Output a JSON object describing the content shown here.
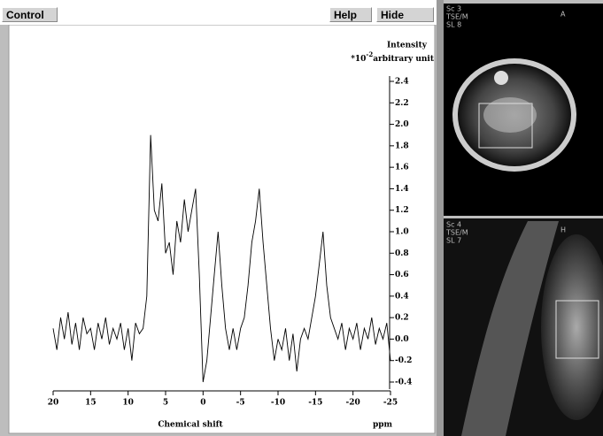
{
  "toolbar": {
    "buttons": [
      "Control",
      "Help",
      "Hide"
    ]
  },
  "chart_data": {
    "type": "line",
    "y_label": "Intensity",
    "y_unit_prefix": "*10",
    "y_unit_exponent": "-2",
    "y_unit": "arbitrary unit",
    "x_label": "Chemical shift",
    "x_unit": "ppm",
    "color": "#000000",
    "xlim": [
      20,
      -25
    ],
    "xticks": [
      20,
      15,
      10,
      5,
      0,
      -5,
      -10,
      -15,
      -20,
      -25
    ],
    "ylim": [
      -0.4,
      2.4
    ],
    "yticks": [
      2.4,
      2.2,
      {
        "value": 2,
        "label": "2.0"
      },
      1.8,
      1.6,
      1.4,
      1.2,
      {
        "value": 1,
        "label": "1.0"
      },
      0.8,
      0.6,
      0.4,
      0.2,
      {
        "value": 0,
        "label": "0.0"
      },
      -0.2,
      -0.4
    ],
    "x": [
      20,
      19.5,
      19,
      18.5,
      18,
      17.5,
      17,
      16.5,
      16,
      15.5,
      15,
      14.5,
      14,
      13.5,
      13,
      12.5,
      12,
      11.5,
      11,
      10.5,
      10,
      9.5,
      9,
      8.5,
      8,
      7.5,
      7,
      6.5,
      6,
      5.5,
      5,
      4.5,
      4,
      3.5,
      3,
      2.5,
      2,
      1.5,
      1,
      0.5,
      0,
      -0.5,
      -1,
      -1.5,
      -2,
      -2.5,
      -3,
      -3.5,
      -4,
      -4.5,
      -5,
      -5.5,
      -6,
      -6.5,
      -7,
      -7.5,
      -8,
      -8.5,
      -9,
      -9.5,
      -10,
      -10.5,
      -11,
      -11.5,
      -12,
      -12.5,
      -13,
      -13.5,
      -14,
      -14.5,
      -15,
      -15.5,
      -16,
      -16.5,
      -17,
      -17.5,
      -18,
      -18.5,
      -19,
      -19.5,
      -20,
      -20.5,
      -21,
      -21.5,
      -22,
      -22.5,
      -23,
      -23.5,
      -24,
      -24.5,
      -25
    ],
    "values": [
      0.1,
      -0.1,
      0.2,
      0.0,
      0.25,
      -0.05,
      0.15,
      -0.1,
      0.2,
      0.05,
      0.1,
      -0.1,
      0.15,
      0.0,
      0.2,
      -0.05,
      0.1,
      0.0,
      0.15,
      -0.1,
      0.1,
      -0.2,
      0.15,
      0.05,
      0.1,
      0.4,
      1.9,
      1.2,
      1.1,
      1.45,
      0.8,
      0.9,
      0.6,
      1.1,
      0.9,
      1.3,
      1.0,
      1.2,
      1.4,
      0.6,
      -0.4,
      -0.2,
      0.2,
      0.6,
      1.0,
      0.5,
      0.1,
      -0.1,
      0.1,
      -0.1,
      0.1,
      0.2,
      0.5,
      0.9,
      1.1,
      1.4,
      0.9,
      0.5,
      0.1,
      -0.2,
      0.0,
      -0.1,
      0.1,
      -0.2,
      0.05,
      -0.3,
      0.0,
      0.1,
      0.0,
      0.2,
      0.4,
      0.7,
      1.0,
      0.5,
      0.2,
      0.1,
      0.0,
      0.15,
      -0.1,
      0.1,
      0.0,
      0.15,
      -0.1,
      0.1,
      0.0,
      0.2,
      -0.05,
      0.1,
      0.0,
      0.15,
      -0.2
    ]
  },
  "images": [
    {
      "labels": [
        "Sc 3",
        "TSE/M",
        "SL 8"
      ],
      "orientation": "A"
    },
    {
      "labels": [
        "Sc 4",
        "TSE/M",
        "SL 7"
      ],
      "orientation": "H"
    }
  ]
}
